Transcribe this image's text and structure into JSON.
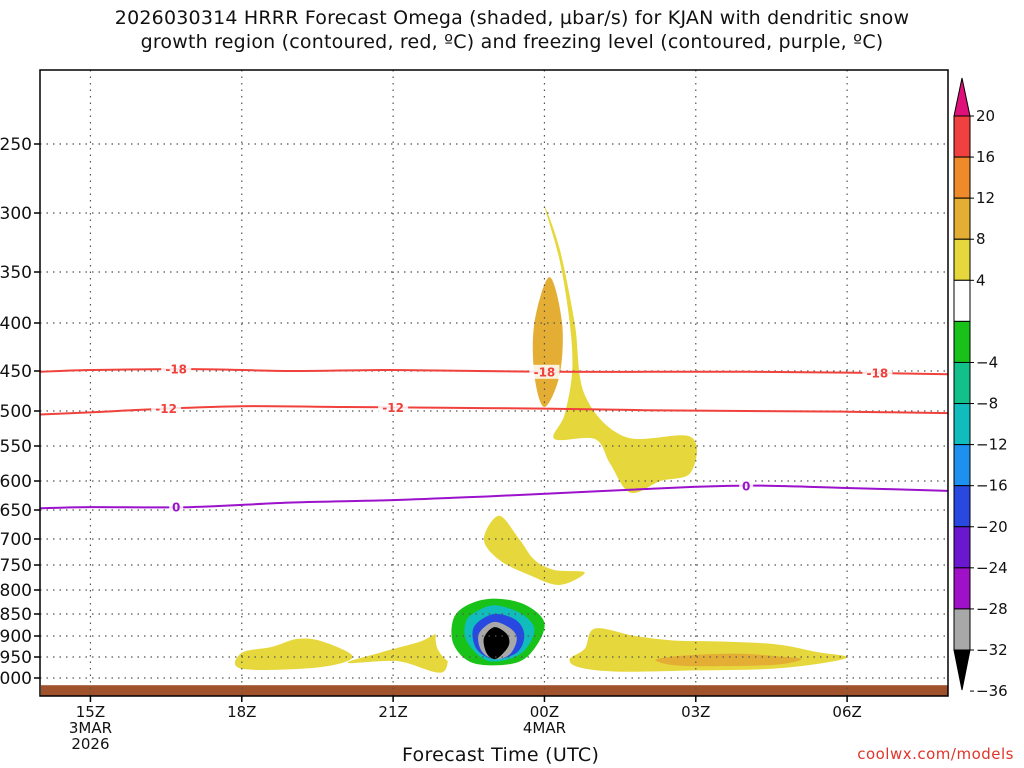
{
  "title_line1": "2026030314 HRRR Forecast Omega (shaded, µbar/s) for KJAN with dendritic snow",
  "title_line2": "growth region (contoured, red, ºC) and freezing level (contoured, purple, ºC)",
  "credit": "coolwx.com/models",
  "chart_data": {
    "type": "time-height cross-section",
    "title": "2026030314 HRRR Forecast Omega (shaded, µbar/s) for KJAN with dendritic snow growth region (contoured, red, ºC) and freezing level (contoured, purple, ºC)",
    "xlabel": "Forecast Time (UTC)",
    "ylabel": "",
    "x_ticks": [
      {
        "hour": 15,
        "lines": [
          "15Z",
          "3MAR",
          "2026"
        ]
      },
      {
        "hour": 18,
        "lines": [
          "18Z"
        ]
      },
      {
        "hour": 21,
        "lines": [
          "21Z"
        ]
      },
      {
        "hour": 24,
        "lines": [
          "00Z",
          "4MAR"
        ]
      },
      {
        "hour": 27,
        "lines": [
          "03Z"
        ]
      },
      {
        "hour": 30,
        "lines": [
          "06Z"
        ]
      }
    ],
    "xlim_hours": [
      14.0,
      32.0
    ],
    "y_ticks_mb": [
      250,
      300,
      350,
      400,
      450,
      500,
      550,
      600,
      650,
      700,
      750,
      800,
      850,
      900,
      950,
      1000
    ],
    "ylim_mb": [
      200,
      1025
    ],
    "grid": true,
    "colorbar": {
      "label_values": [
        20,
        16,
        12,
        8,
        4,
        -4,
        -8,
        -12,
        -16,
        -20,
        -24,
        -28,
        -32,
        -36
      ],
      "bins": [
        {
          "from": 16,
          "to": 20,
          "color": "#f04040"
        },
        {
          "from": 12,
          "to": 16,
          "color": "#ee8a2a"
        },
        {
          "from": 8,
          "to": 12,
          "color": "#e4ae35"
        },
        {
          "from": 4,
          "to": 8,
          "color": "#e6d83c"
        },
        {
          "from": -4,
          "to": 4,
          "color": "#ffffff"
        },
        {
          "from": -8,
          "to": -4,
          "color": "#18c218"
        },
        {
          "from": -12,
          "to": -8,
          "color": "#12c08a"
        },
        {
          "from": -16,
          "to": -12,
          "color": "#10bcbc"
        },
        {
          "from": -20,
          "to": -16,
          "color": "#1e90f0"
        },
        {
          "from": -24,
          "to": -20,
          "color": "#2848e0"
        },
        {
          "from": -28,
          "to": -24,
          "color": "#6a18d0"
        },
        {
          "from": -32,
          "to": -28,
          "color": "#a010c8"
        },
        {
          "from": -36,
          "to": -32,
          "color": "#a8a8a8"
        }
      ],
      "top_color": "#e0107a",
      "bottom_color": "#000000"
    },
    "contours": [
      {
        "value": -18,
        "label": "-18",
        "color": "#f0413c",
        "points": [
          [
            14.0,
            451
          ],
          [
            15.0,
            449
          ],
          [
            17.0,
            448
          ],
          [
            19.0,
            450
          ],
          [
            21.0,
            449
          ],
          [
            24.0,
            451
          ],
          [
            26.0,
            451
          ],
          [
            28.0,
            451
          ],
          [
            30.0,
            452
          ],
          [
            32.0,
            454
          ]
        ],
        "label_hours": [
          16.7,
          24.0,
          30.6
        ]
      },
      {
        "value": -12,
        "label": "-12",
        "color": "#f0413c",
        "points": [
          [
            14.0,
            505
          ],
          [
            15.0,
            502
          ],
          [
            16.5,
            497
          ],
          [
            18.0,
            494
          ],
          [
            20.0,
            495
          ],
          [
            22.0,
            496
          ],
          [
            24.0,
            497
          ],
          [
            26.0,
            499
          ],
          [
            28.0,
            500
          ],
          [
            30.0,
            501
          ],
          [
            32.0,
            503
          ]
        ],
        "label_hours": [
          16.5,
          21.0
        ]
      },
      {
        "value": 0,
        "label": "0",
        "color": "#9b11cc",
        "points": [
          [
            14.0,
            647
          ],
          [
            15.0,
            645
          ],
          [
            17.0,
            645
          ],
          [
            19.0,
            637
          ],
          [
            21.0,
            633
          ],
          [
            23.0,
            626
          ],
          [
            25.0,
            618
          ],
          [
            27.0,
            610
          ],
          [
            28.2,
            608
          ],
          [
            30.0,
            612
          ],
          [
            32.0,
            617
          ]
        ],
        "label_hours": [
          16.7,
          28.0
        ]
      }
    ],
    "omega_regions_note": "Filled regions traced from the image; value = colorbar bin",
    "omega_regions": [
      {
        "value": 4,
        "points": [
          [
            24.0,
            295
          ],
          [
            24.3,
            340
          ],
          [
            24.5,
            400
          ],
          [
            24.55,
            450
          ],
          [
            24.4,
            505
          ],
          [
            24.2,
            540
          ],
          [
            25.0,
            540
          ],
          [
            25.3,
            575
          ],
          [
            25.7,
            620
          ],
          [
            26.3,
            600
          ],
          [
            26.9,
            588
          ],
          [
            26.9,
            537
          ],
          [
            25.6,
            537
          ],
          [
            24.8,
            480
          ],
          [
            24.6,
            400
          ],
          [
            24.3,
            330
          ]
        ]
      },
      {
        "value": 8,
        "points": [
          [
            24.1,
            355
          ],
          [
            24.35,
            400
          ],
          [
            24.3,
            455
          ],
          [
            24.0,
            495
          ],
          [
            23.8,
            455
          ],
          [
            23.8,
            400
          ]
        ]
      },
      {
        "value": 4,
        "points": [
          [
            23.1,
            660
          ],
          [
            23.5,
            700
          ],
          [
            23.8,
            740
          ],
          [
            24.2,
            760
          ],
          [
            24.8,
            765
          ],
          [
            24.3,
            790
          ],
          [
            23.7,
            770
          ],
          [
            23.1,
            740
          ],
          [
            22.8,
            700
          ]
        ]
      },
      {
        "value": 4,
        "points": [
          [
            18.0,
            940
          ],
          [
            18.6,
            926
          ],
          [
            19.1,
            907
          ],
          [
            19.6,
            913
          ],
          [
            20.2,
            950
          ],
          [
            19.5,
            975
          ],
          [
            18.0,
            978
          ]
        ]
      },
      {
        "value": 4,
        "points": [
          [
            20.1,
            964
          ],
          [
            20.7,
            941
          ],
          [
            21.5,
            915
          ],
          [
            22.0,
            895
          ],
          [
            22.0,
            985
          ],
          [
            21.1,
            960
          ]
        ]
      },
      {
        "value": 4,
        "points": [
          [
            25.0,
            883
          ],
          [
            25.8,
            900
          ],
          [
            26.6,
            911
          ],
          [
            27.5,
            913
          ],
          [
            28.6,
            920
          ],
          [
            29.4,
            938
          ],
          [
            30.0,
            950
          ],
          [
            29.5,
            965
          ],
          [
            28.5,
            978
          ],
          [
            27.0,
            982
          ],
          [
            25.5,
            985
          ],
          [
            24.7,
            975
          ],
          [
            24.5,
            955
          ],
          [
            24.8,
            930
          ]
        ]
      },
      {
        "value": 8,
        "points": [
          [
            26.2,
            957
          ],
          [
            26.7,
            947
          ],
          [
            27.8,
            942
          ],
          [
            28.6,
            948
          ],
          [
            29.1,
            955
          ],
          [
            28.6,
            968
          ],
          [
            27.4,
            972
          ],
          [
            26.6,
            970
          ]
        ]
      },
      {
        "value": -4,
        "points": [
          [
            22.9,
            352
          ],
          [
            23.1,
            395
          ],
          [
            23.0,
            445
          ],
          [
            22.8,
            460
          ],
          [
            22.6,
            430
          ],
          [
            22.5,
            392
          ],
          [
            22.7,
            356
          ]
        ]
      },
      {
        "value": -4,
        "points": [
          [
            25.0,
            340
          ],
          [
            25.8,
            370
          ],
          [
            26.9,
            398
          ],
          [
            26.9,
            432
          ],
          [
            25.0,
            432
          ],
          [
            24.9,
            390
          ]
        ]
      },
      {
        "value": -4,
        "points": [
          [
            20.5,
            783
          ],
          [
            21.2,
            790
          ],
          [
            21.0,
            825
          ],
          [
            20.5,
            862
          ],
          [
            20.0,
            840
          ]
        ]
      },
      {
        "value": -4,
        "points": [
          [
            23.0,
            797
          ],
          [
            23.6,
            800
          ],
          [
            24.1,
            817
          ],
          [
            24.4,
            870
          ],
          [
            24.1,
            950
          ],
          [
            23.5,
            985
          ],
          [
            22.5,
            985
          ],
          [
            21.9,
            935
          ],
          [
            21.9,
            860
          ],
          [
            22.2,
            815
          ]
        ]
      },
      {
        "value": -8,
        "points": [
          [
            23.0,
            818
          ],
          [
            23.6,
            830
          ],
          [
            24.0,
            870
          ],
          [
            23.8,
            930
          ],
          [
            23.4,
            965
          ],
          [
            22.6,
            965
          ],
          [
            22.2,
            920
          ],
          [
            22.2,
            860
          ],
          [
            22.5,
            830
          ]
        ]
      },
      {
        "value": -16,
        "points": [
          [
            23.05,
            832
          ],
          [
            23.55,
            850
          ],
          [
            23.8,
            885
          ],
          [
            23.6,
            935
          ],
          [
            23.2,
            958
          ],
          [
            22.8,
            955
          ],
          [
            22.45,
            910
          ],
          [
            22.45,
            865
          ],
          [
            22.7,
            842
          ]
        ]
      },
      {
        "value": -24,
        "points": [
          [
            23.0,
            850
          ],
          [
            23.45,
            865
          ],
          [
            23.6,
            900
          ],
          [
            23.45,
            940
          ],
          [
            23.0,
            955
          ],
          [
            22.65,
            930
          ],
          [
            22.6,
            880
          ]
        ]
      },
      {
        "value": -36,
        "points": [
          [
            23.0,
            868
          ],
          [
            23.35,
            885
          ],
          [
            23.45,
            910
          ],
          [
            23.3,
            945
          ],
          [
            23.0,
            955
          ],
          [
            22.75,
            935
          ],
          [
            22.7,
            895
          ]
        ]
      },
      {
        "value": -40,
        "points": [
          [
            23.0,
            880
          ],
          [
            23.25,
            895
          ],
          [
            23.3,
            920
          ],
          [
            23.15,
            945
          ],
          [
            23.0,
            955
          ],
          [
            22.85,
            940
          ],
          [
            22.8,
            905
          ]
        ]
      }
    ],
    "terrain": {
      "color": "#a0522d",
      "top_mb": 1010
    }
  }
}
